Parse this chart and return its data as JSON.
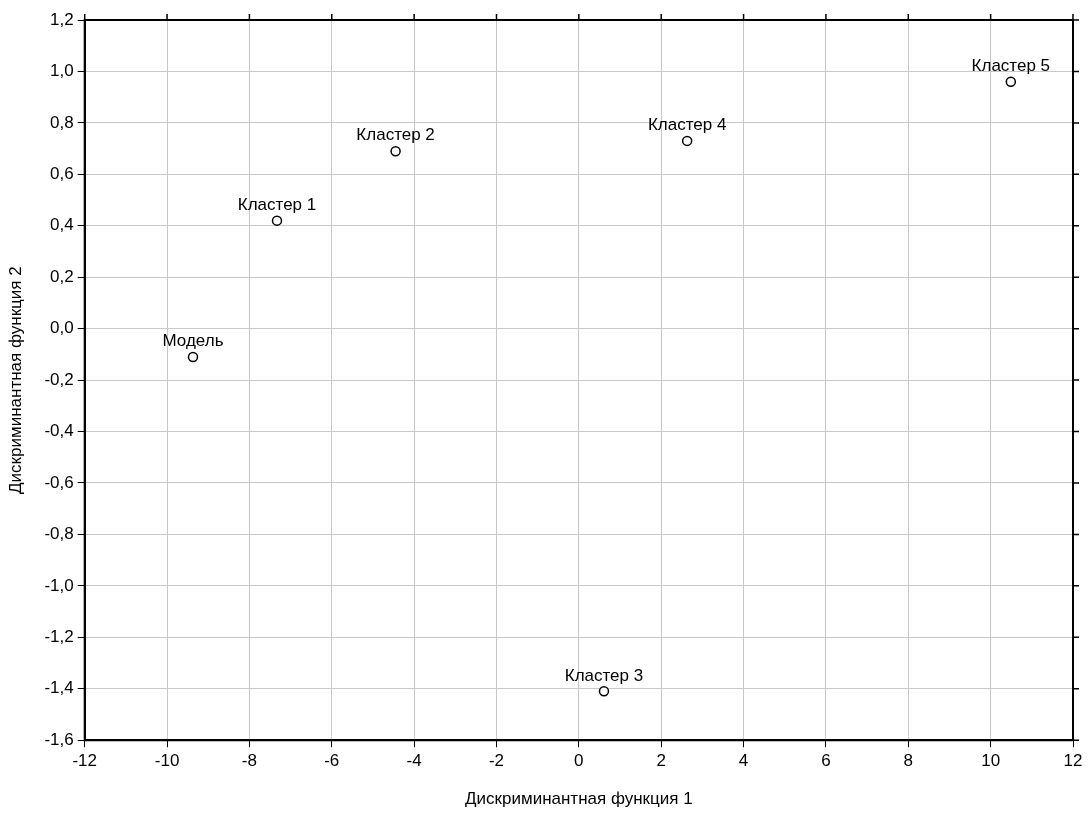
{
  "chart_data": {
    "type": "scatter",
    "xlabel": "Дискриминантная функция 1",
    "ylabel": "Дискриминантная функция 2",
    "x": [
      -9.37,
      -7.33,
      -4.45,
      0.61,
      2.63,
      10.49
    ],
    "series": [
      {
        "color": "#000000",
        "values": [
          -0.11,
          0.42,
          0.69,
          -1.41,
          0.73,
          0.96
        ]
      }
    ],
    "annotations": [
      {
        "text": "Модель",
        "x": -9.37,
        "y": -0.11
      },
      {
        "text": "Кластер 1",
        "x": -7.33,
        "y": 0.42
      },
      {
        "text": "Кластер 2",
        "x": -4.45,
        "y": 0.69
      },
      {
        "text": "Кластер 3",
        "x": 0.61,
        "y": -1.41
      },
      {
        "text": "Кластер 4",
        "x": 2.63,
        "y": 0.73
      },
      {
        "text": "Кластер 5",
        "x": 10.49,
        "y": 0.96
      }
    ],
    "xlim": [
      -12,
      12
    ],
    "xticks": [
      -12,
      -10,
      -8,
      -6,
      -4,
      -2,
      0,
      2,
      4,
      6,
      8,
      10,
      12
    ],
    "ylim": [
      -1.6,
      1.2
    ],
    "yticks": [
      {
        "value": -1.6,
        "label": "-1,6"
      },
      {
        "value": -1.4,
        "label": "-1,4"
      },
      {
        "value": -1.2,
        "label": "-1,2"
      },
      {
        "value": -1.0,
        "label": "-1,0"
      },
      {
        "value": -0.8,
        "label": "-0,8"
      },
      {
        "value": -0.6,
        "label": "-0,6"
      },
      {
        "value": -0.4,
        "label": "-0,4"
      },
      {
        "value": -0.2,
        "label": "-0,2"
      },
      {
        "value": 0,
        "label": "0,0"
      },
      {
        "value": 0.2,
        "label": "0,2"
      },
      {
        "value": 0.4,
        "label": "0,4"
      },
      {
        "value": 0.6,
        "label": "0,6"
      },
      {
        "value": 0.8,
        "label": "0,8"
      },
      {
        "value": 1.0,
        "label": "1,0"
      },
      {
        "value": 1.2,
        "label": "1,2"
      }
    ],
    "grid": true,
    "legend": false,
    "marker": "circle"
  }
}
